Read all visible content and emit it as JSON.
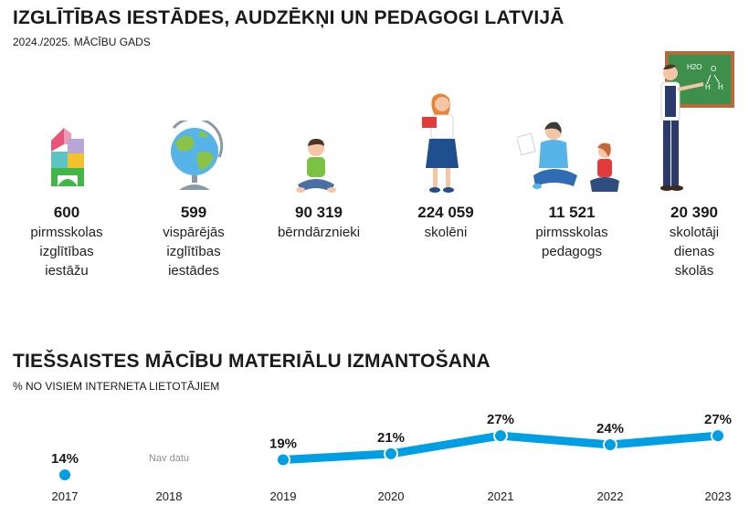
{
  "header": {
    "title": "IZGLĪTĪBAS IESTĀDES, AUDZĒKŅI UN PEDAGOGI LATVIJĀ",
    "subtitle": "2024./2025. MĀCĪBU GADS"
  },
  "stats": [
    {
      "value": "600",
      "label_lines": [
        "pirmsskolas",
        "izglītības",
        "iestāžu"
      ],
      "icon": "toy-blocks-icon"
    },
    {
      "value": "599",
      "label_lines": [
        "vispārējās",
        "izglītības",
        "iestādes"
      ],
      "icon": "globe-icon"
    },
    {
      "value": "90 319",
      "label_lines": [
        "bērndārznieki"
      ],
      "icon": "child-sitting-icon"
    },
    {
      "value": "224 059",
      "label_lines": [
        "skolēni"
      ],
      "icon": "student-with-book-icon"
    },
    {
      "value": "11 521",
      "label_lines": [
        "pirmsskolas",
        "pedagogs"
      ],
      "icon": "preschool-teacher-icon"
    },
    {
      "value": "20 390",
      "label_lines": [
        "skolotāji",
        "dienas",
        "skolās"
      ],
      "icon": "teacher-at-board-icon"
    }
  ],
  "board_text": {
    "h2o": "H2O",
    "h1": "H",
    "h2": "H",
    "o": "O"
  },
  "chart_section": {
    "title": "TIEŠSAISTES MĀCĪBU MATERIĀLU IZMANTOŠANA",
    "subtitle": "% NO VISIEM INTERNETA LIETOTĀJIEM"
  },
  "chart_data": {
    "type": "line",
    "categories": [
      "2017",
      "2018",
      "2019",
      "2020",
      "2021",
      "2022",
      "2023"
    ],
    "values": [
      14,
      null,
      19,
      21,
      27,
      24,
      27
    ],
    "value_labels": [
      "14%",
      "Nav datu",
      "19%",
      "21%",
      "27%",
      "24%",
      "27%"
    ],
    "color": "#009fe3",
    "missing_label": "Nav datu"
  }
}
